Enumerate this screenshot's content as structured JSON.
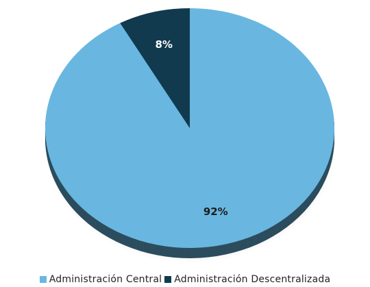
{
  "chart_data": {
    "type": "pie",
    "title": "",
    "series": [
      {
        "name": "",
        "labels": [
          "Administración Central",
          "Administración Descentralizada"
        ],
        "values": [
          92,
          8
        ],
        "display_labels": [
          "92%",
          "8%"
        ],
        "colors": [
          "#69b7e0",
          "#123a4f"
        ]
      }
    ],
    "legend": {
      "position": "bottom",
      "items": [
        {
          "label": "Administración Central",
          "color": "#69b7e0"
        },
        {
          "label": "Administración Descentralizada",
          "color": "#123a4f"
        }
      ]
    },
    "start_angle_deg": 0,
    "direction": "clockwise"
  }
}
